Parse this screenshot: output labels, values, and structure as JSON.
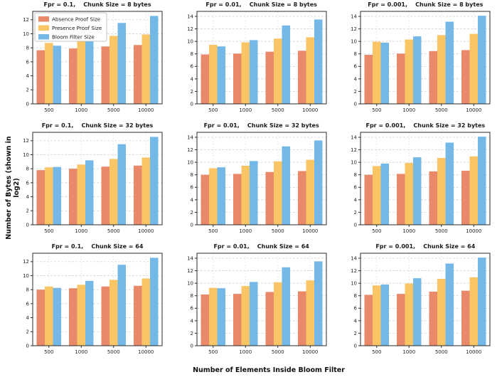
{
  "figure": {
    "ylabel": "Number of Bytes (shown in log2)",
    "xlabel": "Number of Elements Inside Bloom Filter"
  },
  "colors": {
    "absence": "#E9896A",
    "presence": "#FAC665",
    "bloom": "#74B8E8",
    "spine": "#2b2b2b",
    "grid": "#cfcfcf",
    "tick_label": "#262626"
  },
  "legend": {
    "entries": [
      {
        "label": "Absence Proof Size",
        "color": "#E9896A"
      },
      {
        "label": "Presence Proof Size",
        "color": "#FAC665"
      },
      {
        "label": "Bloom Filter Size",
        "color": "#74B8E8"
      }
    ]
  },
  "chart_data": [
    {
      "type": "bar",
      "title": "Fpr = 0.1,    Chunk Size = 8 bytes",
      "categories": [
        "500",
        "1000",
        "5000",
        "10000"
      ],
      "series": [
        {
          "name": "Absence Proof Size",
          "values": [
            7.65,
            7.9,
            8.2,
            8.4
          ]
        },
        {
          "name": "Presence Proof Size",
          "values": [
            8.7,
            9.1,
            9.7,
            9.9
          ]
        },
        {
          "name": "Bloom Filter Size",
          "values": [
            8.3,
            9.25,
            11.55,
            12.55
          ]
        }
      ],
      "yticks": [
        0,
        2,
        4,
        6,
        8,
        10,
        12
      ],
      "ylim": [
        0,
        13.2
      ],
      "show_legend": true
    },
    {
      "type": "bar",
      "title": "Fpr = 0.01,    Chunk Size = 8 bytes",
      "categories": [
        "500",
        "1000",
        "5000",
        "10000"
      ],
      "series": [
        {
          "name": "Absence Proof Size",
          "values": [
            7.9,
            8.05,
            8.35,
            8.5
          ]
        },
        {
          "name": "Presence Proof Size",
          "values": [
            9.45,
            9.85,
            10.45,
            10.65
          ]
        },
        {
          "name": "Bloom Filter Size",
          "values": [
            9.2,
            10.2,
            12.55,
            13.5
          ]
        }
      ],
      "yticks": [
        0,
        2,
        4,
        6,
        8,
        10,
        12,
        14
      ],
      "ylim": [
        0,
        14.8
      ],
      "show_legend": false
    },
    {
      "type": "bar",
      "title": "Fpr = 0.001,    Chunk Size = 8 bytes",
      "categories": [
        "500",
        "1000",
        "5000",
        "10000"
      ],
      "series": [
        {
          "name": "Absence Proof Size",
          "values": [
            7.85,
            8.05,
            8.45,
            8.6
          ]
        },
        {
          "name": "Presence Proof Size",
          "values": [
            9.95,
            10.3,
            11.0,
            11.2
          ]
        },
        {
          "name": "Bloom Filter Size",
          "values": [
            9.8,
            10.8,
            13.15,
            14.1
          ]
        }
      ],
      "yticks": [
        0,
        2,
        4,
        6,
        8,
        10,
        12,
        14
      ],
      "ylim": [
        0,
        14.8
      ],
      "show_legend": false
    },
    {
      "type": "bar",
      "title": "Fpr = 0.1,    Chunk Size = 32 bytes",
      "categories": [
        "500",
        "1000",
        "5000",
        "10000"
      ],
      "series": [
        {
          "name": "Absence Proof Size",
          "values": [
            7.8,
            8.0,
            8.3,
            8.45
          ]
        },
        {
          "name": "Presence Proof Size",
          "values": [
            8.2,
            8.6,
            9.4,
            9.6
          ]
        },
        {
          "name": "Bloom Filter Size",
          "values": [
            8.25,
            9.2,
            11.5,
            12.55
          ]
        }
      ],
      "yticks": [
        0,
        2,
        4,
        6,
        8,
        10,
        12
      ],
      "ylim": [
        0,
        13.2
      ],
      "show_legend": false
    },
    {
      "type": "bar",
      "title": "Fpr = 0.01,    Chunk Size = 32 bytes",
      "categories": [
        "500",
        "1000",
        "5000",
        "10000"
      ],
      "series": [
        {
          "name": "Absence Proof Size",
          "values": [
            8.0,
            8.15,
            8.45,
            8.6
          ]
        },
        {
          "name": "Presence Proof Size",
          "values": [
            9.05,
            9.45,
            10.15,
            10.4
          ]
        },
        {
          "name": "Bloom Filter Size",
          "values": [
            9.2,
            10.2,
            12.55,
            13.5
          ]
        }
      ],
      "yticks": [
        0,
        2,
        4,
        6,
        8,
        10,
        12,
        14
      ],
      "ylim": [
        0,
        14.8
      ],
      "show_legend": false
    },
    {
      "type": "bar",
      "title": "Fpr = 0.001,    Chunk Size = 32 bytes",
      "categories": [
        "500",
        "1000",
        "5000",
        "10000"
      ],
      "series": [
        {
          "name": "Absence Proof Size",
          "values": [
            8.0,
            8.15,
            8.55,
            8.65
          ]
        },
        {
          "name": "Presence Proof Size",
          "values": [
            9.4,
            9.9,
            10.7,
            10.95
          ]
        },
        {
          "name": "Bloom Filter Size",
          "values": [
            9.8,
            10.8,
            13.15,
            14.1
          ]
        }
      ],
      "yticks": [
        0,
        2,
        4,
        6,
        8,
        10,
        12,
        14
      ],
      "ylim": [
        0,
        14.8
      ],
      "show_legend": false
    },
    {
      "type": "bar",
      "title": "Fpr = 0.1,    Chunk Size = 64",
      "categories": [
        "500",
        "1000",
        "5000",
        "10000"
      ],
      "series": [
        {
          "name": "Absence Proof Size",
          "values": [
            8.0,
            8.2,
            8.45,
            8.55
          ]
        },
        {
          "name": "Presence Proof Size",
          "values": [
            8.45,
            8.7,
            9.4,
            9.6
          ]
        },
        {
          "name": "Bloom Filter Size",
          "values": [
            8.25,
            9.25,
            11.55,
            12.55
          ]
        }
      ],
      "yticks": [
        0,
        2,
        4,
        6,
        8,
        10,
        12
      ],
      "ylim": [
        0,
        13.2
      ],
      "show_legend": false
    },
    {
      "type": "bar",
      "title": "Fpr = 0.01,    Chunk Size = 64",
      "categories": [
        "500",
        "1000",
        "5000",
        "10000"
      ],
      "series": [
        {
          "name": "Absence Proof Size",
          "values": [
            8.2,
            8.3,
            8.6,
            8.7
          ]
        },
        {
          "name": "Presence Proof Size",
          "values": [
            9.25,
            9.55,
            10.15,
            10.45
          ]
        },
        {
          "name": "Bloom Filter Size",
          "values": [
            9.2,
            10.2,
            12.55,
            13.5
          ]
        }
      ],
      "yticks": [
        0,
        2,
        4,
        6,
        8,
        10,
        12,
        14
      ],
      "ylim": [
        0,
        14.8
      ],
      "show_legend": false
    },
    {
      "type": "bar",
      "title": "Fpr = 0.001,    Chunk Size = 64",
      "categories": [
        "500",
        "1000",
        "5000",
        "10000"
      ],
      "series": [
        {
          "name": "Absence Proof Size",
          "values": [
            8.15,
            8.3,
            8.65,
            8.8
          ]
        },
        {
          "name": "Presence Proof Size",
          "values": [
            9.65,
            9.95,
            10.7,
            10.95
          ]
        },
        {
          "name": "Bloom Filter Size",
          "values": [
            9.8,
            10.8,
            13.15,
            14.1
          ]
        }
      ],
      "yticks": [
        0,
        2,
        4,
        6,
        8,
        10,
        12,
        14
      ],
      "ylim": [
        0,
        14.8
      ],
      "show_legend": false
    }
  ]
}
